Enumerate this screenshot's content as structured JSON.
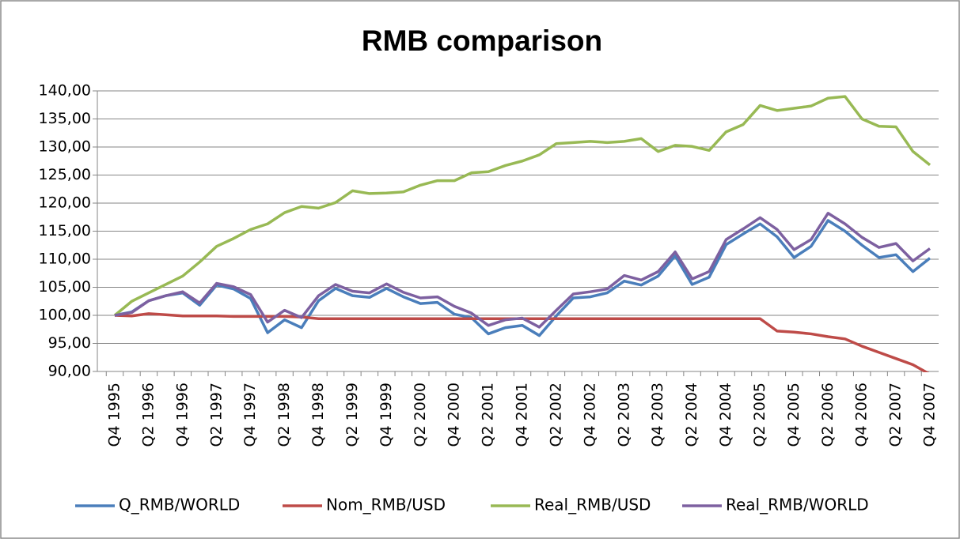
{
  "chart_data": {
    "type": "line",
    "title": "RMB comparison",
    "categories": [
      "Q4 1995",
      null,
      "Q2 1996",
      null,
      "Q4 1996",
      null,
      "Q2 1997",
      null,
      "Q4 1997",
      null,
      "Q2 1998",
      null,
      "Q4 1998",
      null,
      "Q2 1999",
      null,
      "Q4 1999",
      null,
      "Q2 2000",
      null,
      "Q4 2000",
      null,
      "Q2 2001",
      null,
      "Q4 2001",
      null,
      "Q2 2002",
      null,
      "Q4 2002",
      null,
      "Q2 2003",
      null,
      "Q4 2003",
      null,
      "Q2 2004",
      null,
      "Q4 2004",
      null,
      "Q2 2005",
      null,
      "Q4 2005",
      null,
      "Q2 2006",
      null,
      "Q4 2006",
      null,
      "Q2 2007",
      null,
      "Q4 2007"
    ],
    "series": [
      {
        "name": "Q_RMB/WORLD",
        "color": "#4a7ebb",
        "values": [
          100,
          100.6,
          102.6,
          103.5,
          104,
          101.8,
          105.4,
          104.7,
          103,
          96.9,
          99.2,
          97.8,
          102.6,
          104.8,
          103.5,
          103.2,
          104.8,
          103.3,
          102.1,
          102.3,
          100.2,
          99.6,
          96.7,
          97.8,
          98.2,
          96.4,
          99.9,
          103.1,
          103.3,
          104,
          106.1,
          105.4,
          107,
          110.6,
          105.5,
          106.8,
          112.6,
          114.5,
          116.3,
          114,
          110.3,
          112.3,
          116.9,
          115,
          112.5,
          110.3,
          110.8,
          107.8,
          110.2
        ]
      },
      {
        "name": "Nom_RMB/USD",
        "color": "#be4b48",
        "values": [
          100,
          99.9,
          100.3,
          100.1,
          99.9,
          99.9,
          99.9,
          99.8,
          99.8,
          99.8,
          99.8,
          99.7,
          99.4,
          99.4,
          99.4,
          99.4,
          99.4,
          99.4,
          99.4,
          99.4,
          99.4,
          99.4,
          99.4,
          99.4,
          99.4,
          99.4,
          99.4,
          99.4,
          99.4,
          99.4,
          99.4,
          99.4,
          99.4,
          99.4,
          99.4,
          99.4,
          99.4,
          99.4,
          99.4,
          97.2,
          97,
          96.7,
          96.2,
          95.8,
          94.5,
          93.4,
          92.3,
          91.2,
          89.5
        ]
      },
      {
        "name": "Real_RMB/USD",
        "color": "#98b954",
        "values": [
          100,
          102.5,
          104,
          105.5,
          107,
          109.5,
          112.3,
          113.7,
          115.3,
          116.3,
          118.3,
          119.4,
          119.1,
          120.1,
          122.2,
          121.7,
          121.8,
          122,
          123.2,
          124,
          124,
          125.4,
          125.6,
          126.7,
          127.5,
          128.6,
          130.6,
          130.8,
          131,
          130.8,
          131,
          131.5,
          129.2,
          130.3,
          130.1,
          129.4,
          132.7,
          134,
          137.4,
          136.5,
          136.9,
          137.3,
          138.7,
          139,
          135,
          133.7,
          133.6,
          129.2,
          126.8
        ]
      },
      {
        "name": "Real_RMB/WORLD",
        "color": "#7d60a0",
        "values": [
          100,
          100.5,
          102.6,
          103.5,
          104.2,
          102.2,
          105.7,
          105.1,
          103.7,
          98.8,
          100.9,
          99.6,
          103.5,
          105.5,
          104.3,
          104,
          105.6,
          104.1,
          103.1,
          103.3,
          101.6,
          100.4,
          98.2,
          99.2,
          99.5,
          97.9,
          100.9,
          103.8,
          104.2,
          104.7,
          107.1,
          106.3,
          107.8,
          111.3,
          106.5,
          107.8,
          113.5,
          115.4,
          117.4,
          115.3,
          111.7,
          113.5,
          118.2,
          116.3,
          113.9,
          112.1,
          112.8,
          109.7,
          111.9
        ]
      }
    ],
    "ylim": [
      90,
      140
    ],
    "yticks": [
      {
        "value": 90,
        "label": "90,00"
      },
      {
        "value": 95,
        "label": "95,00"
      },
      {
        "value": 100,
        "label": "100,00"
      },
      {
        "value": 105,
        "label": "105,00"
      },
      {
        "value": 110,
        "label": "110,00"
      },
      {
        "value": 115,
        "label": "115,00"
      },
      {
        "value": 120,
        "label": "120,00"
      },
      {
        "value": 125,
        "label": "125,00"
      },
      {
        "value": 130,
        "label": "130,00"
      },
      {
        "value": 135,
        "label": "135,00"
      },
      {
        "value": 140,
        "label": "140,00"
      }
    ],
    "grid": true,
    "legend": "bottom"
  }
}
